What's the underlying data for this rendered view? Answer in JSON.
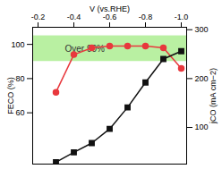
{
  "chart_data": {
    "type": "line",
    "x_label": "V (vs.RHE)",
    "y_label": "FECO (%)",
    "y2_label": "jCO (mA cm−2)",
    "x": [
      -0.3,
      -0.4,
      -0.5,
      -0.6,
      -0.7,
      -0.8,
      -0.9,
      -1.0
    ],
    "xlim": [
      -0.17,
      -1.03
    ],
    "xticks": [
      -0.2,
      -0.4,
      -0.6,
      -0.8,
      {
        "value": -1.0,
        "label": "-1.0"
      }
    ],
    "ylim": [
      30,
      110
    ],
    "yticks": [
      60,
      80,
      100
    ],
    "y2lim": [
      25,
      305
    ],
    "y2ticks": [
      100,
      200,
      300
    ],
    "band": {
      "range": [
        90,
        105
      ],
      "label": "Over 90%",
      "color": "#b9f0a2"
    },
    "series": [
      {
        "name": "FECO",
        "color": "#e8383d",
        "marker": "circle",
        "line_style": "solid",
        "values": [
          72,
          94,
          98,
          99,
          99,
          99,
          98,
          86
        ]
      },
      {
        "name": "jCO",
        "color": "#111111",
        "marker": "square",
        "line_style": "solid",
        "axis": "y2",
        "values": [
          29,
          49,
          68,
          97,
          141,
          192,
          240,
          256
        ]
      }
    ]
  }
}
